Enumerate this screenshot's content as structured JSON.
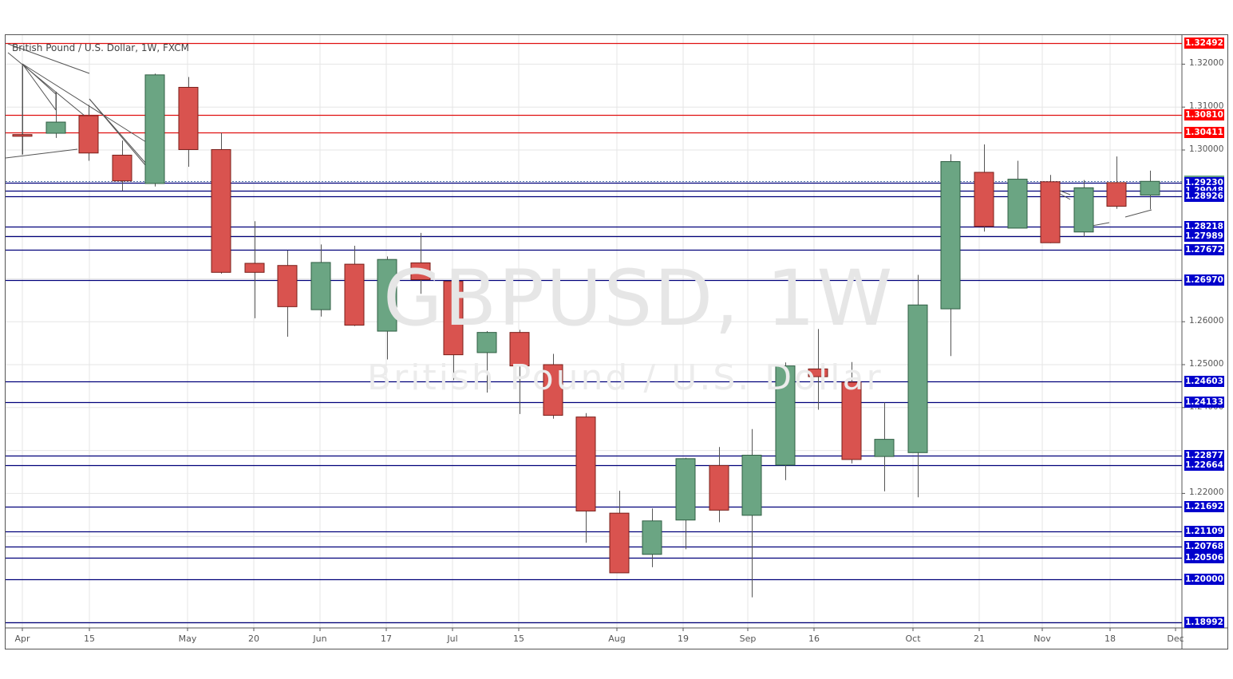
{
  "header": {
    "title": "British Pound / U.S. Dollar, 1W, FXCM"
  },
  "watermark": {
    "symbol": "GBPUSD, 1W",
    "name": "British Pound / U.S. Dollar"
  },
  "colors": {
    "up": "#6ba583",
    "down": "#d9534f",
    "resistance": "#ff0000",
    "support": "#0000cc",
    "current": "#6ba583",
    "grid": "#e6e6e6"
  },
  "chart_data": {
    "type": "candlestick",
    "title": "British Pound / U.S. Dollar, 1W, FXCM",
    "symbol": "GBPUSD",
    "timeframe": "1W",
    "ylim": [
      1.185,
      1.33
    ],
    "y_ticks": [
      "1.32000",
      "1.31000",
      "1.30000",
      "1.26000",
      "1.25000",
      "1.24000",
      "1.22000"
    ],
    "x_ticks": [
      "Apr",
      "15",
      "May",
      "20",
      "Jun",
      "17",
      "Jul",
      "15",
      "Aug",
      "19",
      "Sep",
      "16",
      "Oct",
      "21",
      "Nov",
      "18",
      "Dec"
    ],
    "horizontal_levels": [
      {
        "price": "1.32492",
        "type": "resistance"
      },
      {
        "price": "1.30810",
        "type": "resistance"
      },
      {
        "price": "1.30411",
        "type": "resistance"
      },
      {
        "price": "1.29272",
        "type": "current"
      },
      {
        "price": "1.29230",
        "type": "support"
      },
      {
        "price": "1.29048",
        "type": "support"
      },
      {
        "price": "1.28926",
        "type": "support"
      },
      {
        "price": "1.28218",
        "type": "support"
      },
      {
        "price": "1.27989",
        "type": "support"
      },
      {
        "price": "1.27672",
        "type": "support"
      },
      {
        "price": "1.26970",
        "type": "support"
      },
      {
        "price": "1.24603",
        "type": "support"
      },
      {
        "price": "1.24133",
        "type": "support"
      },
      {
        "price": "1.22877",
        "type": "support"
      },
      {
        "price": "1.22664",
        "type": "support"
      },
      {
        "price": "1.21692",
        "type": "support"
      },
      {
        "price": "1.21109",
        "type": "support"
      },
      {
        "price": "1.20768",
        "type": "support"
      },
      {
        "price": "1.20506",
        "type": "support"
      },
      {
        "price": "1.20000",
        "type": "support"
      },
      {
        "price": "1.18992",
        "type": "support"
      }
    ],
    "candles": [
      {
        "o": 1.3036,
        "h": 1.3196,
        "l": 1.299,
        "c": 1.3032
      },
      {
        "o": 1.3039,
        "h": 1.3136,
        "l": 1.3028,
        "c": 1.3065
      },
      {
        "o": 1.308,
        "h": 1.3105,
        "l": 1.2975,
        "c": 1.2993
      },
      {
        "o": 1.2988,
        "h": 1.3022,
        "l": 1.2905,
        "c": 1.2928
      },
      {
        "o": 1.2922,
        "h": 1.3178,
        "l": 1.2915,
        "c": 1.3175
      },
      {
        "o": 1.3146,
        "h": 1.317,
        "l": 1.2961,
        "c": 1.3001
      },
      {
        "o": 1.3001,
        "h": 1.304,
        "l": 1.2712,
        "c": 1.2715
      },
      {
        "o": 1.2736,
        "h": 1.2834,
        "l": 1.2608,
        "c": 1.2715
      },
      {
        "o": 1.2731,
        "h": 1.2766,
        "l": 1.2565,
        "c": 1.2635
      },
      {
        "o": 1.2628,
        "h": 1.278,
        "l": 1.2612,
        "c": 1.2738
      },
      {
        "o": 1.2734,
        "h": 1.2777,
        "l": 1.259,
        "c": 1.2592
      },
      {
        "o": 1.2578,
        "h": 1.2752,
        "l": 1.2512,
        "c": 1.2745
      },
      {
        "o": 1.2737,
        "h": 1.2807,
        "l": 1.2665,
        "c": 1.2698
      },
      {
        "o": 1.2694,
        "h": 1.2708,
        "l": 1.2464,
        "c": 1.2523
      },
      {
        "o": 1.2528,
        "h": 1.2578,
        "l": 1.2435,
        "c": 1.2575
      },
      {
        "o": 1.2575,
        "h": 1.2581,
        "l": 1.2385,
        "c": 1.2497
      },
      {
        "o": 1.25,
        "h": 1.2525,
        "l": 1.2374,
        "c": 1.2382
      },
      {
        "o": 1.2378,
        "h": 1.2387,
        "l": 1.2085,
        "c": 1.2159
      },
      {
        "o": 1.2154,
        "h": 1.2206,
        "l": 1.2017,
        "c": 1.2015
      },
      {
        "o": 1.2058,
        "h": 1.2165,
        "l": 1.2028,
        "c": 1.2136
      },
      {
        "o": 1.2138,
        "h": 1.2283,
        "l": 1.207,
        "c": 1.2281
      },
      {
        "o": 1.2265,
        "h": 1.2308,
        "l": 1.2133,
        "c": 1.2161
      },
      {
        "o": 1.2149,
        "h": 1.235,
        "l": 1.1958,
        "c": 1.2289
      },
      {
        "o": 1.2266,
        "h": 1.2505,
        "l": 1.2231,
        "c": 1.2497
      },
      {
        "o": 1.249,
        "h": 1.2583,
        "l": 1.2395,
        "c": 1.2472
      },
      {
        "o": 1.2459,
        "h": 1.2506,
        "l": 1.227,
        "c": 1.2279
      },
      {
        "o": 1.2286,
        "h": 1.2412,
        "l": 1.2205,
        "c": 1.2326
      },
      {
        "o": 1.2295,
        "h": 1.2709,
        "l": 1.2191,
        "c": 1.2639
      },
      {
        "o": 1.263,
        "h": 1.299,
        "l": 1.252,
        "c": 1.2973
      },
      {
        "o": 1.2948,
        "h": 1.3013,
        "l": 1.281,
        "c": 1.2822
      },
      {
        "o": 1.2818,
        "h": 1.2975,
        "l": 1.283,
        "c": 1.2932
      },
      {
        "o": 1.2926,
        "h": 1.2942,
        "l": 1.2783,
        "c": 1.2784
      },
      {
        "o": 1.2809,
        "h": 1.293,
        "l": 1.2798,
        "c": 1.2912
      },
      {
        "o": 1.2924,
        "h": 1.2985,
        "l": 1.2863,
        "c": 1.2869
      },
      {
        "o": 1.2895,
        "h": 1.2952,
        "l": 1.2862,
        "c": 1.2927
      }
    ]
  }
}
